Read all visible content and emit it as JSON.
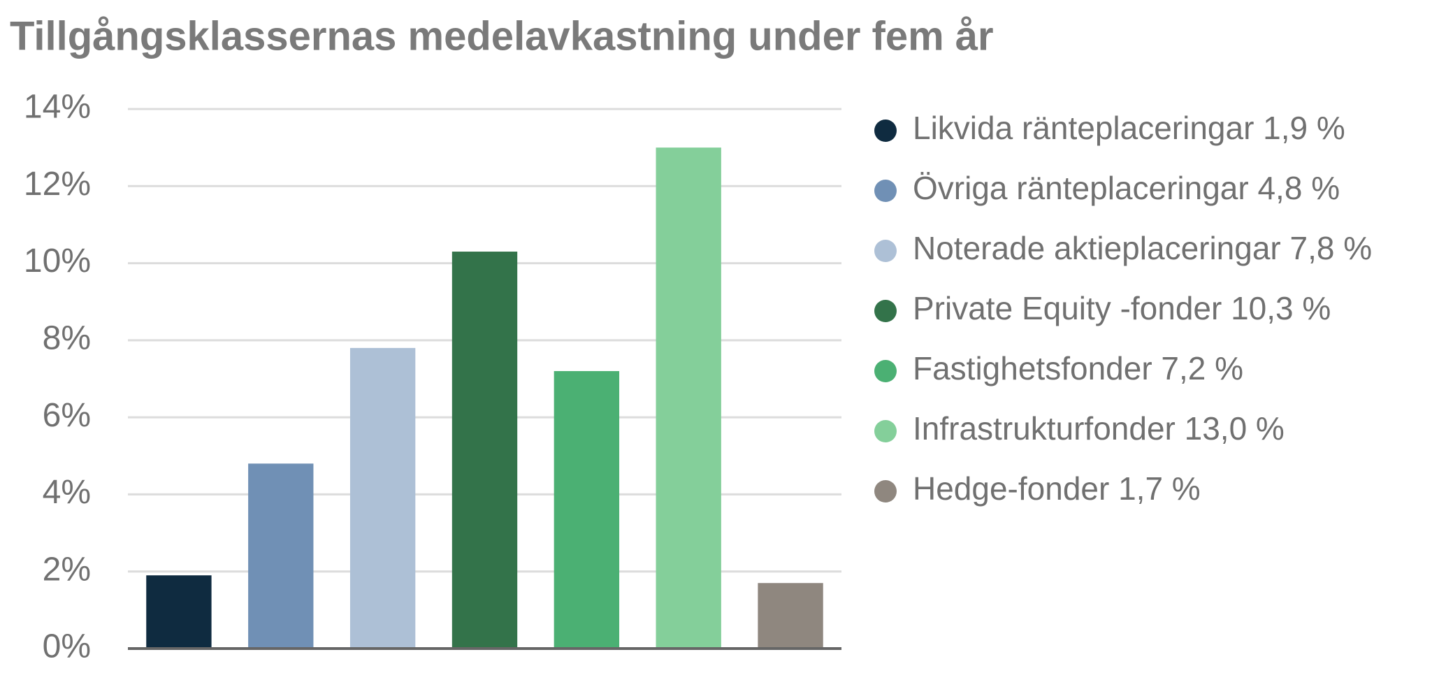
{
  "chart_data": {
    "type": "bar",
    "title": "Tillgångsklassernas medelavkastning under fem år",
    "categories": [
      "Likvida ränteplaceringar 1,9 %",
      "Övriga ränteplaceringar 4,8 %",
      "Noterade aktieplaceringar 7,8 %",
      "Private Equity -fonder 10,3 %",
      "Fastighetsfonder 7,2 %",
      "Infrastrukturfonder 13,0 %",
      "Hedge-fonder 1,7 %"
    ],
    "values": [
      1.9,
      4.8,
      7.8,
      10.3,
      7.2,
      13.0,
      1.7
    ],
    "colors": [
      "#0f2b40",
      "#7090b5",
      "#adc0d6",
      "#33734a",
      "#4bb073",
      "#84cf9a",
      "#8f877f"
    ],
    "ylim": [
      0,
      14
    ],
    "yticks": [
      {
        "value": 0,
        "label": "0%"
      },
      {
        "value": 2,
        "label": "2%"
      },
      {
        "value": 4,
        "label": "4%"
      },
      {
        "value": 6,
        "label": "6%"
      },
      {
        "value": 8,
        "label": "8%"
      },
      {
        "value": 10,
        "label": "10%"
      },
      {
        "value": 12,
        "label": "12%"
      },
      {
        "value": 14,
        "label": "14%"
      }
    ],
    "grid": true,
    "legend": "right"
  }
}
